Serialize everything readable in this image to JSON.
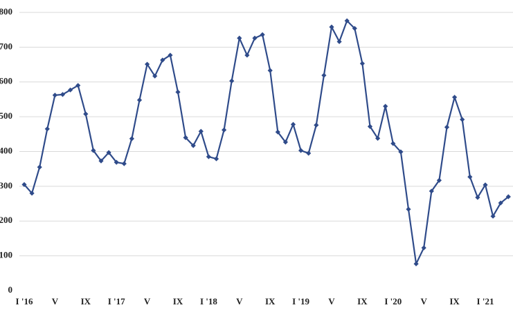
{
  "chart_data": {
    "type": "line",
    "categories": [
      "I '16",
      null,
      null,
      null,
      "V",
      null,
      null,
      null,
      "IX",
      null,
      null,
      null,
      "I '17",
      null,
      null,
      null,
      "V",
      null,
      null,
      null,
      "IX",
      null,
      null,
      null,
      "I '18",
      null,
      null,
      null,
      "V",
      null,
      null,
      null,
      "IX",
      null,
      null,
      null,
      "I '19",
      null,
      null,
      null,
      "V",
      null,
      null,
      null,
      "IX",
      null,
      null,
      null,
      "I '20",
      null,
      null,
      null,
      "V",
      null,
      null,
      null,
      "IX",
      null,
      null,
      null,
      "I '21",
      null,
      null,
      null
    ],
    "series": [
      {
        "name": "value",
        "color": "#2f4b8a",
        "values": [
          305,
          280,
          355,
          465,
          562,
          564,
          577,
          590,
          508,
          403,
          373,
          397,
          369,
          365,
          437,
          548,
          651,
          617,
          663,
          677,
          571,
          440,
          417,
          458,
          385,
          379,
          462,
          603,
          726,
          677,
          726,
          736,
          633,
          456,
          427,
          478,
          403,
          395,
          476,
          619,
          758,
          716,
          776,
          754,
          653,
          472,
          438,
          530,
          423,
          399,
          234,
          77,
          123,
          286,
          317,
          470,
          556,
          492,
          327,
          268,
          304,
          214,
          252,
          270
        ]
      }
    ],
    "ylim": [
      0,
      800
    ],
    "yticks": [
      0,
      100,
      200,
      300,
      400,
      500,
      600,
      700,
      800
    ],
    "grid": true
  }
}
